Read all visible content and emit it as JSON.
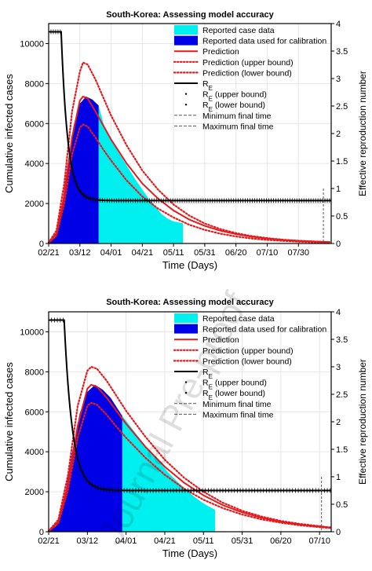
{
  "watermark": "Journal Pre-proof",
  "colors": {
    "reported": "#00f0f0",
    "calibration": "#0000e6",
    "prediction": "#e41a1c",
    "re": "#000000",
    "final_time": "#555555",
    "grid": "#e6e6e6"
  },
  "legend": [
    {
      "key": "reported",
      "label": "Reported case data",
      "swatch": "box-cyan"
    },
    {
      "key": "calibration",
      "label": "Reported data used for calibration",
      "swatch": "box-blue"
    },
    {
      "key": "prediction",
      "label": "Prediction",
      "swatch": "line-red"
    },
    {
      "key": "pred_upper",
      "label": "Prediction (upper bound)",
      "swatch": "dot-red"
    },
    {
      "key": "pred_lower",
      "label": "Prediction (lower bound)",
      "swatch": "dot-red"
    },
    {
      "key": "re",
      "label": "R",
      "sub": "E",
      "suffix": "",
      "swatch": "line-black"
    },
    {
      "key": "re_upper",
      "label": "R",
      "sub": "E",
      "suffix": " (upper bound)",
      "swatch": "dot-black"
    },
    {
      "key": "re_lower",
      "label": "R",
      "sub": "E",
      "suffix": " (lower bound)",
      "swatch": "dot-black"
    },
    {
      "key": "min_final",
      "label": "Minimum final time",
      "swatch": "dash-grey"
    },
    {
      "key": "max_final",
      "label": "Maximum final time",
      "swatch": "dash-grey"
    }
  ],
  "chart_data": [
    {
      "type": "area",
      "title": "South-Korea: Assessing model accuracy",
      "xlabel": "Time (Days)",
      "ylabel": "Cumulative infected cases",
      "y2label": "Effective reproduction number",
      "x_ticks": [
        "02/21",
        "03/12",
        "04/01",
        "04/21",
        "05/11",
        "05/31",
        "06/20",
        "07/10",
        "07/30"
      ],
      "xlim": [
        0,
        181
      ],
      "ylim": [
        0,
        11000
      ],
      "y_ticks": [
        0,
        2000,
        4000,
        6000,
        8000,
        10000
      ],
      "y2lim": [
        0,
        4
      ],
      "y2_ticks": [
        "0",
        "0.5",
        "1",
        "1.5",
        "2",
        "2.5",
        "3",
        "3.5",
        "4"
      ],
      "grid": true,
      "legend_position": "top-right",
      "calibration_end_day": 32,
      "reported_end_day": 86,
      "final_time_day": 176,
      "re_start": 3.85,
      "re_end": 0.78,
      "re_drop_day": 8,
      "series": [
        {
          "name": "Reported case data",
          "kind": "area",
          "x": [
            0,
            4,
            8,
            12,
            16,
            20,
            24,
            28,
            32,
            36,
            40,
            44,
            48,
            52,
            56,
            60,
            64,
            68,
            72,
            76,
            80,
            84,
            86
          ],
          "y": [
            30,
            300,
            1600,
            3900,
            5900,
            7000,
            7350,
            7200,
            6900,
            5750,
            5250,
            4650,
            4150,
            3650,
            3150,
            2700,
            2250,
            1900,
            1500,
            1250,
            1100,
            1050,
            1000
          ]
        },
        {
          "name": "Prediction",
          "kind": "line",
          "x": [
            0,
            5,
            10,
            15,
            20,
            22,
            25,
            30,
            35,
            40,
            50,
            60,
            70,
            80,
            90,
            100,
            110,
            120,
            130,
            140,
            150,
            160,
            170,
            180
          ],
          "y": [
            30,
            500,
            2400,
            5300,
            7150,
            7350,
            7250,
            6600,
            5900,
            5200,
            4000,
            3000,
            2250,
            1650,
            1200,
            880,
            640,
            470,
            340,
            250,
            180,
            130,
            100,
            70
          ]
        },
        {
          "name": "Prediction (upper bound)",
          "kind": "dotted",
          "x": [
            0,
            5,
            10,
            15,
            20,
            22,
            25,
            30,
            35,
            40,
            50,
            60,
            70,
            80,
            90,
            100,
            110,
            120,
            130,
            140,
            150,
            160,
            170,
            180
          ],
          "y": [
            40,
            650,
            3000,
            6600,
            8600,
            9050,
            8950,
            8200,
            7300,
            6400,
            4900,
            3650,
            2700,
            1950,
            1400,
            1000,
            720,
            520,
            370,
            270,
            190,
            140,
            100,
            70
          ]
        },
        {
          "name": "Prediction (lower bound)",
          "kind": "dotted",
          "x": [
            0,
            5,
            10,
            15,
            20,
            22,
            25,
            30,
            35,
            40,
            50,
            60,
            70,
            80,
            90,
            100,
            110,
            120,
            130,
            140,
            150,
            160,
            170,
            180
          ],
          "y": [
            20,
            400,
            2000,
            4450,
            5800,
            5950,
            5850,
            5300,
            4700,
            4150,
            3150,
            2350,
            1750,
            1300,
            940,
            680,
            490,
            350,
            250,
            180,
            130,
            90,
            60,
            40
          ]
        }
      ]
    },
    {
      "type": "area",
      "title": "South-Korea: Assessing model accuracy",
      "xlabel": "Time (Days)",
      "ylabel": "Cumulative infected cases",
      "y2label": "Effective reproduction number",
      "x_ticks": [
        "02/21",
        "03/12",
        "04/01",
        "04/21",
        "05/11",
        "05/31",
        "06/20",
        "07/10"
      ],
      "xlim": [
        0,
        146
      ],
      "ylim": [
        0,
        11000
      ],
      "y_ticks": [
        0,
        2000,
        4000,
        6000,
        8000,
        10000
      ],
      "y2lim": [
        0,
        4
      ],
      "y2_ticks": [
        "0",
        "0.5",
        "1",
        "1.5",
        "2",
        "2.5",
        "3",
        "3.5",
        "4"
      ],
      "grid": true,
      "legend_position": "top-right",
      "calibration_end_day": 38,
      "reported_end_day": 86,
      "final_time_day": 141,
      "re_start": 3.85,
      "re_end": 0.75,
      "re_drop_day": 8,
      "series": [
        {
          "name": "Reported case data",
          "kind": "area",
          "x": [
            0,
            4,
            8,
            12,
            16,
            20,
            24,
            28,
            32,
            36,
            38,
            42,
            46,
            50,
            54,
            58,
            62,
            66,
            70,
            74,
            78,
            82,
            86
          ],
          "y": [
            30,
            300,
            1600,
            3900,
            5900,
            7000,
            7350,
            7100,
            6700,
            6100,
            5800,
            5300,
            4800,
            4300,
            3850,
            3400,
            2950,
            2550,
            2200,
            1850,
            1550,
            1300,
            1100
          ]
        },
        {
          "name": "Prediction",
          "kind": "line",
          "x": [
            0,
            5,
            10,
            15,
            20,
            22,
            25,
            30,
            35,
            40,
            50,
            60,
            70,
            80,
            90,
            100,
            110,
            120,
            130,
            140,
            146
          ],
          "y": [
            30,
            500,
            2400,
            5300,
            7150,
            7350,
            7250,
            6700,
            6050,
            5400,
            4250,
            3250,
            2450,
            1820,
            1330,
            970,
            700,
            500,
            360,
            260,
            200
          ]
        },
        {
          "name": "Prediction (upper bound)",
          "kind": "dotted",
          "x": [
            0,
            5,
            10,
            15,
            20,
            22,
            25,
            30,
            35,
            40,
            50,
            60,
            70,
            80,
            90,
            100,
            110,
            120,
            130,
            140,
            146
          ],
          "y": [
            40,
            600,
            2850,
            6300,
            8050,
            8250,
            8150,
            7550,
            6800,
            6050,
            4750,
            3600,
            2700,
            2000,
            1450,
            1050,
            760,
            540,
            390,
            280,
            210
          ]
        },
        {
          "name": "Prediction (lower bound)",
          "kind": "dotted",
          "x": [
            0,
            5,
            10,
            15,
            20,
            22,
            25,
            30,
            35,
            40,
            50,
            60,
            70,
            80,
            90,
            100,
            110,
            120,
            130,
            140,
            146
          ],
          "y": [
            20,
            420,
            2100,
            4700,
            6300,
            6450,
            6350,
            5850,
            5250,
            4700,
            3700,
            2850,
            2150,
            1600,
            1180,
            860,
            620,
            450,
            320,
            230,
            180
          ]
        }
      ]
    }
  ]
}
